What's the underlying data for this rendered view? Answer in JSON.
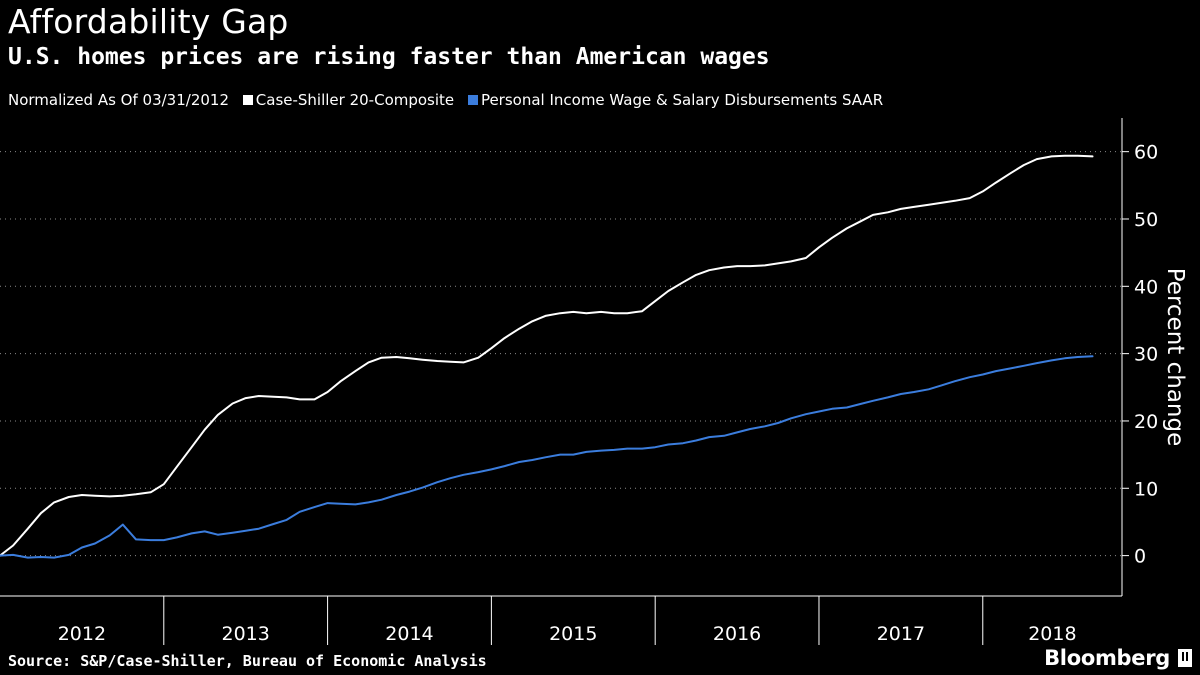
{
  "title": "Affordability Gap",
  "subtitle": "U.S. homes prices are rising faster than American wages",
  "legend": {
    "normalized_label": "Normalized As Of 03/31/2012",
    "items": [
      {
        "label": "Case-Shiller 20-Composite",
        "color": "#ffffff"
      },
      {
        "label": "Personal Income Wage & Salary Disbursements SAAR",
        "color": "#3b7ddd"
      }
    ]
  },
  "source": "Source: S&P/Case-Shiller, Bureau of Economic Analysis",
  "brand": "Bloomberg",
  "chart_data": {
    "type": "line",
    "ylabel": "Percent change",
    "ylim": [
      -6,
      65
    ],
    "yticks": [
      0,
      10,
      20,
      30,
      40,
      50,
      60
    ],
    "xlim": [
      2012.0,
      2018.85
    ],
    "year_ticks": [
      "2012",
      "2013",
      "2014",
      "2015",
      "2016",
      "2017",
      "2018"
    ],
    "grid": "horizontal-dotted",
    "legend_position": "top",
    "series": [
      {
        "name": "Case-Shiller 20-Composite",
        "color": "#ffffff",
        "x": [
          2012.0,
          2012.08,
          2012.17,
          2012.25,
          2012.33,
          2012.42,
          2012.5,
          2012.58,
          2012.67,
          2012.75,
          2012.83,
          2012.92,
          2013.0,
          2013.08,
          2013.17,
          2013.25,
          2013.33,
          2013.42,
          2013.5,
          2013.58,
          2013.67,
          2013.75,
          2013.83,
          2013.92,
          2014.0,
          2014.08,
          2014.17,
          2014.25,
          2014.33,
          2014.42,
          2014.5,
          2014.58,
          2014.67,
          2014.75,
          2014.83,
          2014.92,
          2015.0,
          2015.08,
          2015.17,
          2015.25,
          2015.33,
          2015.42,
          2015.5,
          2015.58,
          2015.67,
          2015.75,
          2015.83,
          2015.92,
          2016.0,
          2016.08,
          2016.17,
          2016.25,
          2016.33,
          2016.42,
          2016.5,
          2016.58,
          2016.67,
          2016.75,
          2016.83,
          2016.92,
          2017.0,
          2017.08,
          2017.17,
          2017.25,
          2017.33,
          2017.42,
          2017.5,
          2017.58,
          2017.67,
          2017.75,
          2017.83,
          2017.92,
          2018.0,
          2018.08,
          2018.17,
          2018.25,
          2018.33,
          2018.42,
          2018.5,
          2018.58,
          2018.67
        ],
        "y": [
          0.0,
          1.5,
          4.0,
          6.3,
          7.9,
          8.7,
          9.0,
          8.9,
          8.8,
          8.9,
          9.1,
          9.4,
          10.6,
          13.2,
          16.1,
          18.7,
          20.9,
          22.6,
          23.4,
          23.7,
          23.6,
          23.5,
          23.2,
          23.2,
          24.3,
          25.9,
          27.4,
          28.7,
          29.4,
          29.5,
          29.3,
          29.1,
          28.9,
          28.8,
          28.7,
          29.4,
          30.8,
          32.3,
          33.7,
          34.8,
          35.6,
          36.0,
          36.2,
          36.0,
          36.2,
          36.0,
          36.0,
          36.3,
          37.8,
          39.3,
          40.6,
          41.7,
          42.4,
          42.8,
          43.0,
          43.0,
          43.1,
          43.4,
          43.7,
          44.2,
          45.8,
          47.2,
          48.6,
          49.6,
          50.6,
          51.0,
          51.5,
          51.8,
          52.1,
          52.4,
          52.7,
          53.1,
          54.1,
          55.4,
          56.8,
          58.0,
          58.9,
          59.3,
          59.4,
          59.4,
          59.3
        ]
      },
      {
        "name": "Personal Income Wage & Salary Disbursements SAAR",
        "color": "#3b7ddd",
        "x": [
          2012.0,
          2012.08,
          2012.17,
          2012.25,
          2012.33,
          2012.42,
          2012.5,
          2012.58,
          2012.67,
          2012.75,
          2012.83,
          2012.92,
          2013.0,
          2013.08,
          2013.17,
          2013.25,
          2013.33,
          2013.42,
          2013.5,
          2013.58,
          2013.67,
          2013.75,
          2013.83,
          2013.92,
          2014.0,
          2014.08,
          2014.17,
          2014.25,
          2014.33,
          2014.42,
          2014.5,
          2014.58,
          2014.67,
          2014.75,
          2014.83,
          2014.92,
          2015.0,
          2015.08,
          2015.17,
          2015.25,
          2015.33,
          2015.42,
          2015.5,
          2015.58,
          2015.67,
          2015.75,
          2015.83,
          2015.92,
          2016.0,
          2016.08,
          2016.17,
          2016.25,
          2016.33,
          2016.42,
          2016.5,
          2016.58,
          2016.67,
          2016.75,
          2016.83,
          2016.92,
          2017.0,
          2017.08,
          2017.17,
          2017.25,
          2017.33,
          2017.42,
          2017.5,
          2017.58,
          2017.67,
          2017.75,
          2017.83,
          2017.92,
          2018.0,
          2018.08,
          2018.17,
          2018.25,
          2018.33,
          2018.42,
          2018.5,
          2018.58,
          2018.67
        ],
        "y": [
          0.0,
          0.1,
          -0.3,
          -0.2,
          -0.3,
          0.1,
          1.2,
          1.8,
          3.0,
          4.6,
          2.4,
          2.3,
          2.3,
          2.7,
          3.3,
          3.6,
          3.1,
          3.4,
          3.7,
          4.0,
          4.7,
          5.3,
          6.5,
          7.2,
          7.8,
          7.7,
          7.6,
          7.9,
          8.3,
          9.0,
          9.5,
          10.1,
          10.9,
          11.5,
          12.0,
          12.4,
          12.8,
          13.3,
          13.9,
          14.2,
          14.6,
          15.0,
          15.0,
          15.4,
          15.6,
          15.7,
          15.9,
          15.9,
          16.1,
          16.5,
          16.7,
          17.1,
          17.6,
          17.8,
          18.3,
          18.8,
          19.2,
          19.7,
          20.4,
          21.0,
          21.4,
          21.8,
          22.0,
          22.5,
          23.0,
          23.5,
          24.0,
          24.3,
          24.7,
          25.3,
          25.9,
          26.5,
          26.9,
          27.4,
          27.8,
          28.2,
          28.6,
          29.0,
          29.3,
          29.5,
          29.6
        ]
      }
    ]
  }
}
